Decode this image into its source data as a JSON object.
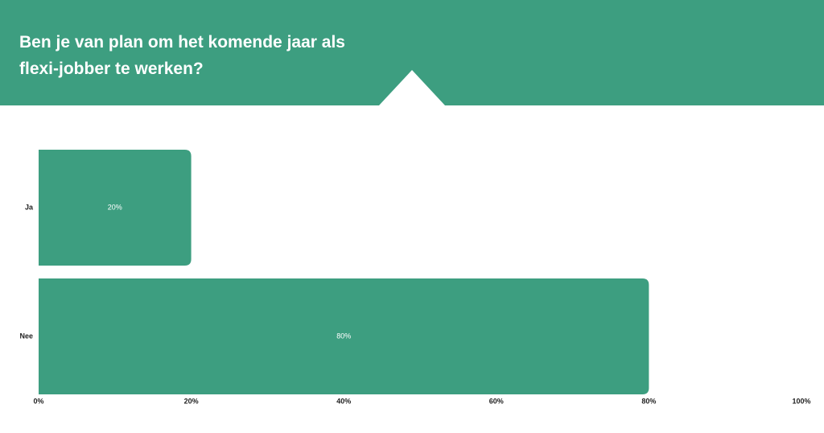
{
  "chart_data": {
    "type": "bar",
    "orientation": "horizontal",
    "title": "Ben je van plan om het komende jaar als flexi-jobber te werken?",
    "categories": [
      "Ja",
      "Nee"
    ],
    "values": [
      20,
      80
    ],
    "value_labels": [
      "20%",
      "80%"
    ],
    "color": "#3d9e80",
    "xlim": [
      0,
      100
    ],
    "xticks": [
      {
        "value": 0,
        "label": "0%"
      },
      {
        "value": 20,
        "label": "20%"
      },
      {
        "value": 40,
        "label": "40%"
      },
      {
        "value": 60,
        "label": "60%"
      },
      {
        "value": 80,
        "label": "80%"
      },
      {
        "value": 100,
        "label": "100%"
      }
    ],
    "grid": false
  }
}
